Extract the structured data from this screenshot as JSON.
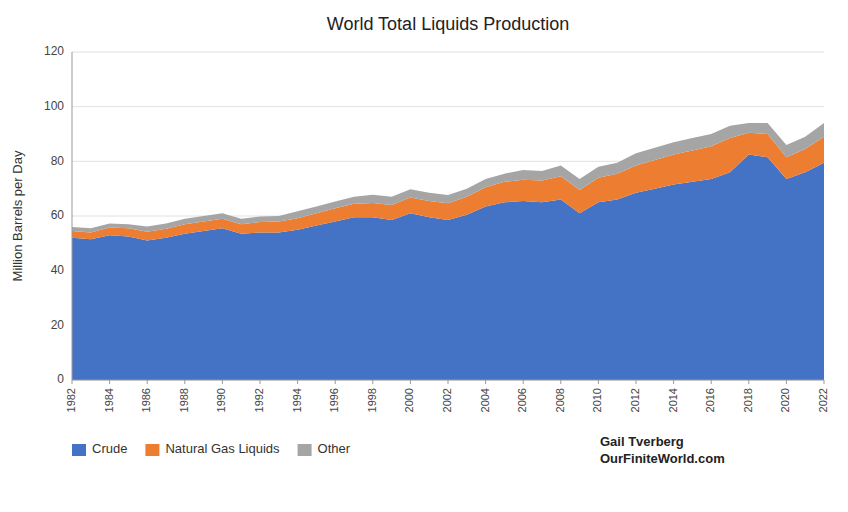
{
  "chart_data": {
    "type": "area",
    "stacked": true,
    "title": "World Total Liquids Production",
    "ylabel": "Million Barrels per Day",
    "annotation": "Gail Tverberg\nOurFiniteWorld.com",
    "x": [
      1982,
      1983,
      1984,
      1985,
      1986,
      1987,
      1988,
      1989,
      1990,
      1991,
      1992,
      1993,
      1994,
      1995,
      1996,
      1997,
      1998,
      1999,
      2000,
      2001,
      2002,
      2003,
      2004,
      2005,
      2006,
      2007,
      2008,
      2009,
      2010,
      2011,
      2012,
      2013,
      2014,
      2015,
      2016,
      2017,
      2018,
      2019,
      2020,
      2021,
      2022
    ],
    "series": [
      {
        "name": "Crude",
        "color": "#4472c4",
        "values": [
          52.0,
          51.5,
          53.0,
          52.5,
          51.0,
          52.0,
          53.5,
          54.5,
          55.5,
          53.5,
          54.0,
          54.0,
          55.0,
          56.5,
          58.0,
          59.5,
          59.5,
          58.5,
          61.0,
          59.5,
          58.5,
          60.5,
          63.5,
          65.0,
          65.5,
          65.0,
          66.0,
          61.0,
          65.0,
          66.0,
          68.5,
          70.0,
          71.5,
          72.5,
          73.5,
          76.0,
          82.5,
          81.5,
          73.5,
          76.0,
          79.5
        ]
      },
      {
        "name": "Natural Gas Liquids",
        "color": "#ed7d31",
        "values": [
          2.5,
          2.5,
          2.8,
          3.0,
          3.2,
          3.3,
          3.5,
          3.5,
          3.5,
          3.5,
          3.8,
          4.0,
          4.2,
          4.5,
          4.8,
          5.0,
          5.3,
          5.5,
          5.8,
          6.0,
          6.2,
          6.5,
          7.0,
          7.5,
          7.8,
          8.0,
          8.5,
          8.5,
          9.0,
          9.5,
          10.0,
          10.5,
          11.0,
          11.5,
          12.0,
          12.5,
          8.0,
          8.5,
          8.0,
          8.5,
          9.5
        ]
      },
      {
        "name": "Other",
        "color": "#a5a5a5",
        "values": [
          1.5,
          1.5,
          1.5,
          1.5,
          2.0,
          2.0,
          2.0,
          2.0,
          2.0,
          2.0,
          2.0,
          2.0,
          2.5,
          2.5,
          2.5,
          2.5,
          3.0,
          3.0,
          3.0,
          3.0,
          3.0,
          3.0,
          3.0,
          3.0,
          3.5,
          3.5,
          4.0,
          4.0,
          4.0,
          4.0,
          4.5,
          4.5,
          4.5,
          4.5,
          4.5,
          4.5,
          3.5,
          4.0,
          4.5,
          4.5,
          5.0
        ]
      }
    ],
    "xlim": [
      1982,
      2022
    ],
    "xticks": [
      1982,
      1984,
      1986,
      1988,
      1990,
      1992,
      1994,
      1996,
      1998,
      2000,
      2002,
      2004,
      2006,
      2008,
      2010,
      2012,
      2014,
      2016,
      2018,
      2020,
      2022
    ],
    "ylim": [
      0,
      120
    ],
    "yticks": [
      0,
      20,
      40,
      60,
      80,
      100,
      120
    ],
    "grid": true,
    "legend": "bottom"
  }
}
